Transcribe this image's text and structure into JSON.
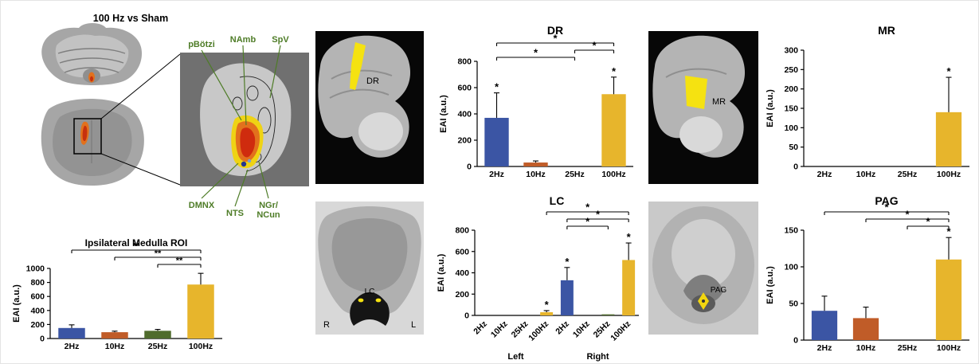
{
  "left_panel": {
    "comparison_title": "100 Hz vs Sham",
    "medulla_labels": {
      "pbotzi": "pBötzi",
      "namb": "NAmb",
      "spv": "SpV",
      "dmnx": "DMNX",
      "nts": "NTS",
      "ngr": "NGr/",
      "ncun": "NCun"
    },
    "label_color": "#4e7c27"
  },
  "panels": {
    "dr": {
      "label": "DR"
    },
    "mr": {
      "label": "MR"
    },
    "lc": {
      "label": "LC",
      "side_right_marker": "R",
      "side_left_marker": "L"
    },
    "pag": {
      "label": "PAG"
    }
  },
  "palette": {
    "hz2_blue": "#3b55a4",
    "hz10_orange": "#c05c28",
    "hz25_green": "#4f6b2c",
    "hz100_gold": "#e7b52c",
    "highlight_yellow": "#f5e211"
  },
  "chart_data": [
    {
      "id": "medulla",
      "type": "bar",
      "title": "Ipsilateral Medulla ROI",
      "title_size": 12,
      "margin_top": 42,
      "ylabel": "EAI (a.u.)",
      "ylim": [
        0,
        1000
      ],
      "yticks": [
        0,
        200,
        400,
        600,
        800,
        1000
      ],
      "categories": [
        "2Hz",
        "10Hz",
        "25Hz",
        "100Hz"
      ],
      "values": [
        150,
        90,
        110,
        770
      ],
      "errors": [
        45,
        15,
        20,
        160
      ],
      "bar_colors": [
        "#3b55a4",
        "#c05c28",
        "#4f6b2c",
        "#e7b52c"
      ],
      "star_bars": [],
      "sig_brackets": [
        {
          "from": 0,
          "to": 3,
          "label": "**",
          "level": 2
        },
        {
          "from": 1,
          "to": 3,
          "label": "**",
          "level": 1
        },
        {
          "from": 2,
          "to": 3,
          "label": "**",
          "level": 0
        }
      ]
    },
    {
      "id": "dr",
      "type": "bar",
      "title": "DR",
      "title_size": 14,
      "margin_top": 48,
      "ylabel": "EAI (a.u.)",
      "ylim": [
        0,
        800
      ],
      "yticks": [
        0,
        200,
        400,
        600,
        800
      ],
      "categories": [
        "2Hz",
        "10Hz",
        "25Hz",
        "100Hz"
      ],
      "values": [
        370,
        30,
        0,
        550
      ],
      "errors": [
        190,
        12,
        0,
        130
      ],
      "bar_colors": [
        "#3b55a4",
        "#c05c28",
        "#4f6b2c",
        "#e7b52c"
      ],
      "star_bars": [
        0,
        3
      ],
      "sig_brackets": [
        {
          "from": 0,
          "to": 3,
          "label": "*",
          "level": 2
        },
        {
          "from": 2,
          "to": 3,
          "label": "*",
          "level": 1
        },
        {
          "from": 0,
          "to": 2,
          "label": "*",
          "level": 0
        }
      ]
    },
    {
      "id": "mr",
      "type": "bar",
      "title": "MR",
      "title_size": 14,
      "margin_top": 34,
      "ylabel": "EAI (a.u.)",
      "ylim": [
        0,
        300
      ],
      "yticks": [
        0,
        50,
        100,
        150,
        200,
        250,
        300
      ],
      "categories": [
        "2Hz",
        "10Hz",
        "25Hz",
        "100Hz"
      ],
      "values": [
        0,
        0,
        0,
        140
      ],
      "errors": [
        0,
        0,
        0,
        90
      ],
      "bar_colors": [
        "#3b55a4",
        "#c05c28",
        "#4f6b2c",
        "#e7b52c"
      ],
      "star_bars": [
        3
      ],
      "sig_brackets": []
    },
    {
      "id": "lc",
      "type": "bar",
      "title": "LC",
      "title_size": 14,
      "margin_top": 46,
      "rotated_labels": true,
      "ylabel": "EAI (a.u.)",
      "ylim": [
        0,
        800
      ],
      "yticks": [
        0,
        200,
        400,
        600,
        800
      ],
      "categories": [
        "2Hz",
        "10Hz",
        "25Hz",
        "100Hz",
        "2Hz",
        "10Hz",
        "25Hz",
        "100Hz"
      ],
      "group_labels": [
        "Left",
        "Right"
      ],
      "values": [
        0,
        0,
        0,
        30,
        330,
        0,
        10,
        520
      ],
      "errors": [
        0,
        0,
        0,
        15,
        120,
        0,
        0,
        160
      ],
      "bar_colors": [
        "#3b55a4",
        "#c05c28",
        "#4f6b2c",
        "#e7b52c",
        "#3b55a4",
        "#c05c28",
        "#4f6b2c",
        "#e7b52c"
      ],
      "star_bars": [
        3,
        4,
        7
      ],
      "sig_brackets": [
        {
          "from": 3,
          "to": 7,
          "label": "*",
          "level": 2
        },
        {
          "from": 4,
          "to": 7,
          "label": "*",
          "level": 1
        },
        {
          "from": 4,
          "to": 6,
          "label": "*",
          "level": 0
        }
      ]
    },
    {
      "id": "pag",
      "type": "bar",
      "title": "PAG",
      "title_size": 14,
      "margin_top": 46,
      "ylabel": "EAI (a.u.)",
      "ylim": [
        0,
        150
      ],
      "yticks": [
        0,
        50,
        100,
        150
      ],
      "categories": [
        "2Hz",
        "10Hz",
        "25Hz",
        "100Hz"
      ],
      "values": [
        40,
        30,
        0,
        110
      ],
      "errors": [
        20,
        15,
        0,
        30
      ],
      "bar_colors": [
        "#3b55a4",
        "#c05c28",
        "#4f6b2c",
        "#e7b52c"
      ],
      "star_bars": [
        3
      ],
      "sig_brackets": [
        {
          "from": 0,
          "to": 3,
          "label": "*",
          "level": 2
        },
        {
          "from": 1,
          "to": 3,
          "label": "*",
          "level": 1
        },
        {
          "from": 2,
          "to": 3,
          "label": "*",
          "level": 0
        }
      ]
    }
  ]
}
